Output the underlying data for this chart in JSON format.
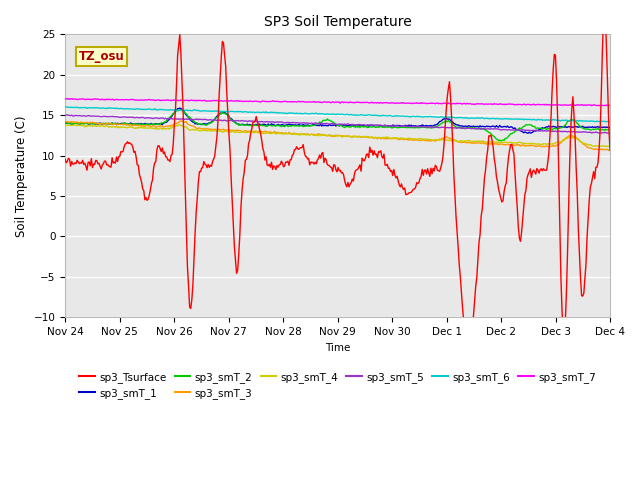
{
  "title": "SP3 Soil Temperature",
  "xlabel": "Time",
  "ylabel": "Soil Temperature (C)",
  "ylim": [
    -10,
    25
  ],
  "yticks": [
    -10,
    -5,
    0,
    5,
    10,
    15,
    20,
    25
  ],
  "xtick_labels": [
    "Nov 24",
    "Nov 25",
    "Nov 26",
    "Nov 27",
    "Nov 28",
    "Nov 29",
    "Nov 30",
    "Dec 1",
    "Dec 2",
    "Dec 3",
    "Dec 4"
  ],
  "annotation_text": "TZ_osu",
  "annotation_color": "#aa0000",
  "annotation_bg": "#ffffcc",
  "annotation_border": "#bbaa00",
  "legend_entries": [
    {
      "label": "sp3_Tsurface",
      "color": "#ff0000"
    },
    {
      "label": "sp3_smT_1",
      "color": "#0000cc"
    },
    {
      "label": "sp3_smT_2",
      "color": "#00cc00"
    },
    {
      "label": "sp3_smT_3",
      "color": "#ff9900"
    },
    {
      "label": "sp3_smT_4",
      "color": "#cccc00"
    },
    {
      "label": "sp3_smT_5",
      "color": "#9933cc"
    },
    {
      "label": "sp3_smT_6",
      "color": "#00cccc"
    },
    {
      "label": "sp3_smT_7",
      "color": "#ff00ff"
    }
  ],
  "bg_color": "#ffffff",
  "plot_bg": "#e8e8e8",
  "grid_color": "#ffffff"
}
